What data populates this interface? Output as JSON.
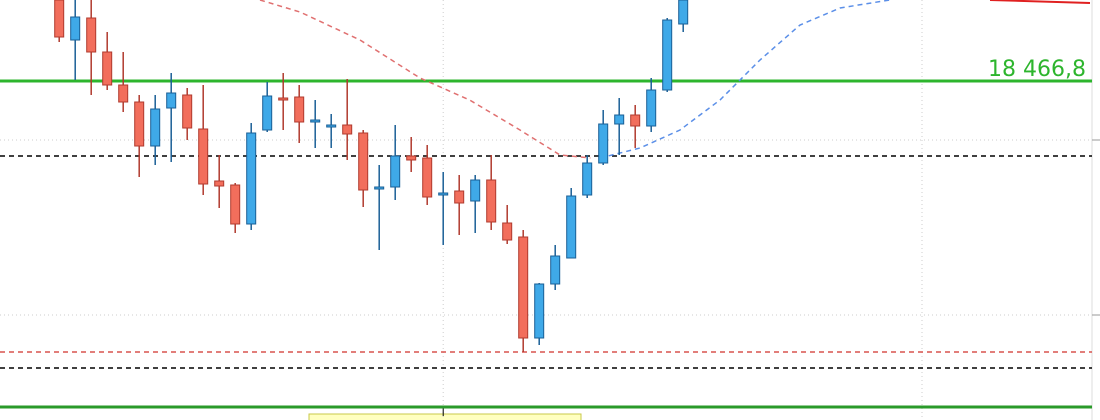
{
  "chart_data": {
    "type": "candlestick",
    "ylim": [
      18127.8,
      18547.8
    ],
    "xlim": [
      -3.7,
      65.05
    ],
    "up_color": "#3fa9e8",
    "down_color": "#f26e5c",
    "x": [
      0,
      1,
      2,
      3,
      4,
      5,
      6,
      7,
      8,
      9,
      10,
      11,
      12,
      13,
      14,
      15,
      16,
      17,
      18,
      19,
      20,
      21,
      22,
      23,
      24,
      25,
      26,
      27,
      28,
      29,
      30,
      31,
      32,
      33,
      34,
      35,
      36,
      37,
      38,
      39
    ],
    "open": [
      18547.8,
      18507.8,
      18529.8,
      18495.8,
      18462.8,
      18445.8,
      18401.8,
      18439.8,
      18452.8,
      18418.8,
      18366.8,
      18362.8,
      18323.8,
      18417.8,
      18449.8,
      18450.8,
      18426.8,
      18421.8,
      18422.8,
      18414.8,
      18358.8,
      18360.8,
      18391.8,
      18389.8,
      18352.8,
      18356.8,
      18346.8,
      18367.8,
      18324.8,
      18310.8,
      18209.8,
      18263.8,
      18289.8,
      18352.8,
      18384.8,
      18423.8,
      18432.8,
      18421.8,
      18457.8,
      18523.8
    ],
    "high": [
      18547.8,
      18547.8,
      18547.8,
      18515.8,
      18495.8,
      18452.8,
      18452.8,
      18474.8,
      18459.8,
      18462.8,
      18392.8,
      18364.8,
      18424.8,
      18465.8,
      18474.8,
      18462.8,
      18447.8,
      18433.8,
      18468.8,
      18417.8,
      18382.8,
      18422.8,
      18410.8,
      18402.8,
      18375.8,
      18372.8,
      18372.8,
      18392.8,
      18342.8,
      18317.8,
      18264.8,
      18302.8,
      18359.8,
      18392.8,
      18437.8,
      18449.8,
      18442.8,
      18469.8,
      18529.8,
      18547.8
    ],
    "low": [
      18505.8,
      18467.8,
      18452.8,
      18457.8,
      18435.8,
      18370.8,
      18382.8,
      18385.8,
      18407.8,
      18352.8,
      18339.8,
      18314.8,
      18317.8,
      18415.8,
      18417.8,
      18404.8,
      18399.8,
      18399.8,
      18387.8,
      18340.8,
      18297.8,
      18347.8,
      18375.8,
      18342.8,
      18302.8,
      18312.8,
      18314.8,
      18317.8,
      18303.8,
      18195.8,
      18202.8,
      18257.8,
      18289.8,
      18349.8,
      18382.8,
      18392.8,
      18399.8,
      18415.8,
      18455.8,
      18515.8
    ],
    "close": [
      18510.8,
      18530.8,
      18495.8,
      18462.8,
      18445.8,
      18401.8,
      18438.8,
      18454.8,
      18419.8,
      18363.8,
      18361.8,
      18323.8,
      18414.8,
      18451.8,
      18447.8,
      18425.8,
      18427.8,
      18422.8,
      18413.8,
      18357.8,
      18360.8,
      18391.8,
      18387.8,
      18350.8,
      18354.8,
      18344.8,
      18367.8,
      18325.8,
      18307.8,
      18209.8,
      18263.8,
      18291.8,
      18351.8,
      18384.8,
      18423.8,
      18432.8,
      18421.8,
      18457.8,
      18527.8,
      18547.8
    ],
    "lines": [
      {
        "color": "#e07070",
        "dash": true,
        "x": [
          12.55,
          15.05,
          18.8,
          22.55,
          25.65,
          28.8,
          31.3,
          33.2
        ],
        "values": [
          18547.8,
          18535.8,
          18507.8,
          18469.8,
          18447.8,
          18417.8,
          18392.8,
          18389.8
        ]
      },
      {
        "color": "#5b8fe8",
        "dash": true,
        "x": [
          33.8,
          36.3,
          38.8,
          41.3,
          43.8,
          46.3,
          48.8,
          51.9
        ],
        "values": [
          18389.8,
          18399.8,
          18417.8,
          18447.8,
          18487.8,
          18522.8,
          18539.8,
          18547.8
        ]
      },
      {
        "color": "#e02020",
        "dash": false,
        "x": [
          58.175,
          64.425
        ],
        "values": [
          18547.8,
          18544.8
        ]
      }
    ],
    "levels": [
      {
        "value": 18466.8,
        "label": "18 466,8",
        "color": "#2db52d",
        "style": "solid"
      },
      {
        "value": 18391.8,
        "color": "#000000",
        "style": "dashed"
      },
      {
        "value": 18195.8,
        "color": "#d9534f",
        "style": "dashed"
      },
      {
        "value": 18179.8,
        "color": "#000000",
        "style": "dashed"
      },
      {
        "value": 18140.8,
        "color": "#2a9a2a",
        "style": "solid"
      }
    ],
    "yticks": [
      18407.8,
      18232.8
    ],
    "xgrid": [
      24,
      53.925
    ],
    "grid": true
  }
}
